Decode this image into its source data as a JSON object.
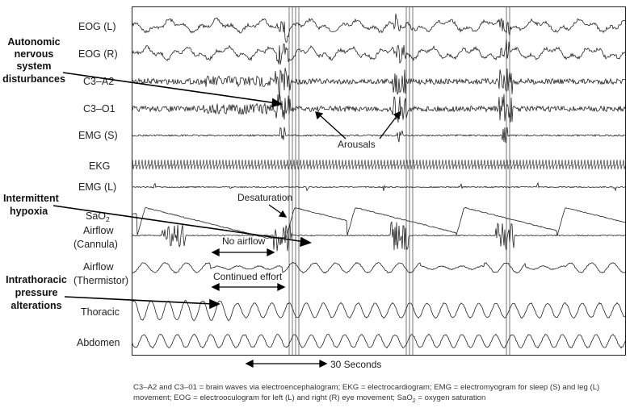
{
  "channels": [
    {
      "key": "eog_l",
      "label": "EOG (L)"
    },
    {
      "key": "eog_r",
      "label": "EOG (R)"
    },
    {
      "key": "c3a2",
      "label": "C3–A2"
    },
    {
      "key": "c3o1",
      "label": "C3–O1"
    },
    {
      "key": "emg_s",
      "label": "EMG (S)"
    },
    {
      "key": "ekg",
      "label": "EKG"
    },
    {
      "key": "emg_l",
      "label": "EMG (L)"
    },
    {
      "key": "sao2",
      "label": "SaO",
      "sub": "2"
    },
    {
      "key": "airflow_cannula",
      "label": "Airflow",
      "label2": "(Cannula)"
    },
    {
      "key": "airflow_thermistor",
      "label": "Airflow",
      "label2": "(Thermistor)"
    },
    {
      "key": "thoracic",
      "label": "Thoracic"
    },
    {
      "key": "abdomen",
      "label": "Abdomen"
    }
  ],
  "left_annotations": {
    "autonomic": [
      "Autonomic",
      "nervous",
      "system",
      "disturbances"
    ],
    "hypoxia": [
      "Intermittent",
      "hypoxia"
    ],
    "pressure": [
      "Intrathoracic",
      "pressure",
      "alterations"
    ]
  },
  "inline_annotations": {
    "arousals": "Arousals",
    "desaturation": "Desaturation",
    "no_airflow": "No airflow",
    "continued_effort": "Continued effort"
  },
  "scale_bar": "30 Seconds",
  "caption": {
    "line1": "C3–A2 and C3–01 = brain waves via electroencephalogram; EKG = electrocardiogram; EMG = electromyogram for sleep (S) and leg (L)",
    "line2a": "movement; EOG = electrooculogram for left (L) and right (R) eye movement; SaO",
    "line2sub": "2",
    "line2b": " = oxygen saturation"
  }
}
